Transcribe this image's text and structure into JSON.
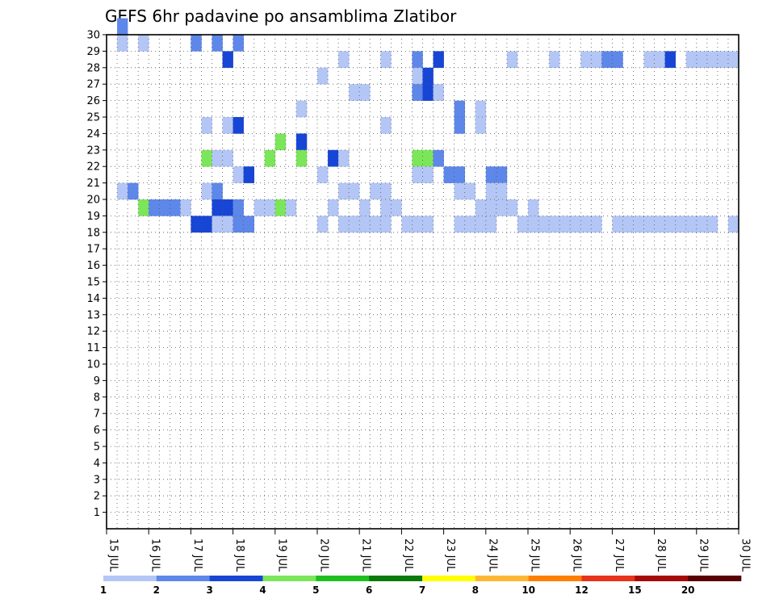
{
  "chart_data": {
    "type": "heatmap",
    "title": "GEFS 6hr padavine po ansamblima Zlatibor",
    "xlabel": "",
    "ylabel": "",
    "x_tick_labels": [
      "15 JUL",
      "16 JUL",
      "17 JUL",
      "18 JUL",
      "19 JUL",
      "20 JUL",
      "21 JUL",
      "22 JUL",
      "23 JUL",
      "24 JUL",
      "25 JUL",
      "26 JUL",
      "27 JUL",
      "28 JUL",
      "29 JUL",
      "30 JUL"
    ],
    "y_tick_labels": [
      "1",
      "2",
      "3",
      "4",
      "5",
      "6",
      "7",
      "8",
      "9",
      "10",
      "11",
      "12",
      "13",
      "14",
      "15",
      "16",
      "17",
      "18",
      "19",
      "20",
      "21",
      "22",
      "23",
      "24",
      "25",
      "26",
      "27",
      "28",
      "29",
      "30"
    ],
    "x_range": [
      0,
      60
    ],
    "y_range": [
      0,
      30
    ],
    "grid": true,
    "colorbar": {
      "labels": [
        "1",
        "2",
        "3",
        "4",
        "5",
        "6",
        "7",
        "8",
        "10",
        "12",
        "15",
        "20"
      ],
      "colors": [
        "#b3c6f5",
        "#5e87ea",
        "#1746d6",
        "#7ce65a",
        "#1fbf1f",
        "#0a7a0a",
        "#ffff00",
        "#ffb733",
        "#ff7f00",
        "#e8321a",
        "#a80a0a",
        "#5a0000"
      ]
    },
    "cells": [
      [
        1,
        30,
        2
      ],
      [
        1,
        29,
        1
      ],
      [
        3,
        29,
        1
      ],
      [
        8,
        29,
        2
      ],
      [
        10,
        29,
        2
      ],
      [
        12,
        29,
        2
      ],
      [
        11,
        28,
        3
      ],
      [
        22,
        28,
        1
      ],
      [
        26,
        28,
        1
      ],
      [
        29,
        28,
        2
      ],
      [
        31,
        28,
        3
      ],
      [
        38,
        28,
        1
      ],
      [
        42,
        28,
        1
      ],
      [
        45,
        28,
        1
      ],
      [
        46,
        28,
        1
      ],
      [
        47,
        28,
        2
      ],
      [
        48,
        28,
        2
      ],
      [
        51,
        28,
        1
      ],
      [
        52,
        28,
        1
      ],
      [
        53,
        28,
        3
      ],
      [
        55,
        28,
        1
      ],
      [
        56,
        28,
        1
      ],
      [
        57,
        28,
        1
      ],
      [
        58,
        28,
        1
      ],
      [
        59,
        28,
        1
      ],
      [
        20,
        27,
        1
      ],
      [
        29,
        27,
        1
      ],
      [
        30,
        27,
        3
      ],
      [
        23,
        26,
        1
      ],
      [
        24,
        26,
        1
      ],
      [
        29,
        26,
        2
      ],
      [
        30,
        26,
        3
      ],
      [
        31,
        26,
        1
      ],
      [
        18,
        25,
        1
      ],
      [
        33,
        25,
        2
      ],
      [
        35,
        25,
        1
      ],
      [
        9,
        24,
        1
      ],
      [
        11,
        24,
        1
      ],
      [
        12,
        24,
        3
      ],
      [
        26,
        24,
        1
      ],
      [
        33,
        24,
        2
      ],
      [
        35,
        24,
        1
      ],
      [
        16,
        23,
        4
      ],
      [
        18,
        23,
        3
      ],
      [
        9,
        22,
        4
      ],
      [
        10,
        22,
        1
      ],
      [
        11,
        22,
        1
      ],
      [
        15,
        22,
        4
      ],
      [
        18,
        22,
        4
      ],
      [
        21,
        22,
        3
      ],
      [
        22,
        22,
        1
      ],
      [
        29,
        22,
        4
      ],
      [
        30,
        22,
        4
      ],
      [
        31,
        22,
        2
      ],
      [
        12,
        21,
        1
      ],
      [
        13,
        21,
        3
      ],
      [
        20,
        21,
        1
      ],
      [
        29,
        21,
        1
      ],
      [
        30,
        21,
        1
      ],
      [
        32,
        21,
        2
      ],
      [
        33,
        21,
        2
      ],
      [
        36,
        21,
        2
      ],
      [
        37,
        21,
        2
      ],
      [
        1,
        20,
        1
      ],
      [
        2,
        20,
        2
      ],
      [
        9,
        20,
        1
      ],
      [
        10,
        20,
        2
      ],
      [
        22,
        20,
        1
      ],
      [
        23,
        20,
        1
      ],
      [
        25,
        20,
        1
      ],
      [
        26,
        20,
        1
      ],
      [
        33,
        20,
        1
      ],
      [
        34,
        20,
        1
      ],
      [
        36,
        20,
        1
      ],
      [
        37,
        20,
        1
      ],
      [
        3,
        19,
        4
      ],
      [
        4,
        19,
        2
      ],
      [
        5,
        19,
        2
      ],
      [
        6,
        19,
        2
      ],
      [
        7,
        19,
        1
      ],
      [
        10,
        19,
        3
      ],
      [
        11,
        19,
        3
      ],
      [
        12,
        19,
        2
      ],
      [
        14,
        19,
        1
      ],
      [
        15,
        19,
        1
      ],
      [
        16,
        19,
        4
      ],
      [
        17,
        19,
        1
      ],
      [
        21,
        19,
        1
      ],
      [
        24,
        19,
        1
      ],
      [
        26,
        19,
        1
      ],
      [
        27,
        19,
        1
      ],
      [
        35,
        19,
        1
      ],
      [
        36,
        19,
        1
      ],
      [
        37,
        19,
        1
      ],
      [
        38,
        19,
        1
      ],
      [
        40,
        19,
        1
      ],
      [
        8,
        18,
        3
      ],
      [
        9,
        18,
        3
      ],
      [
        10,
        18,
        1
      ],
      [
        11,
        18,
        1
      ],
      [
        12,
        18,
        2
      ],
      [
        13,
        18,
        2
      ],
      [
        20,
        18,
        1
      ],
      [
        22,
        18,
        1
      ],
      [
        23,
        18,
        1
      ],
      [
        24,
        18,
        1
      ],
      [
        25,
        18,
        1
      ],
      [
        26,
        18,
        1
      ],
      [
        28,
        18,
        1
      ],
      [
        29,
        18,
        1
      ],
      [
        30,
        18,
        1
      ],
      [
        33,
        18,
        1
      ],
      [
        34,
        18,
        1
      ],
      [
        35,
        18,
        1
      ],
      [
        36,
        18,
        1
      ],
      [
        39,
        18,
        1
      ],
      [
        40,
        18,
        1
      ],
      [
        41,
        18,
        1
      ],
      [
        42,
        18,
        1
      ],
      [
        43,
        18,
        1
      ],
      [
        44,
        18,
        1
      ],
      [
        45,
        18,
        1
      ],
      [
        46,
        18,
        1
      ],
      [
        48,
        18,
        1
      ],
      [
        49,
        18,
        1
      ],
      [
        50,
        18,
        1
      ],
      [
        51,
        18,
        1
      ],
      [
        52,
        18,
        1
      ],
      [
        53,
        18,
        1
      ],
      [
        54,
        18,
        1
      ],
      [
        55,
        18,
        1
      ],
      [
        56,
        18,
        1
      ],
      [
        57,
        18,
        1
      ],
      [
        59,
        18,
        1
      ]
    ]
  }
}
